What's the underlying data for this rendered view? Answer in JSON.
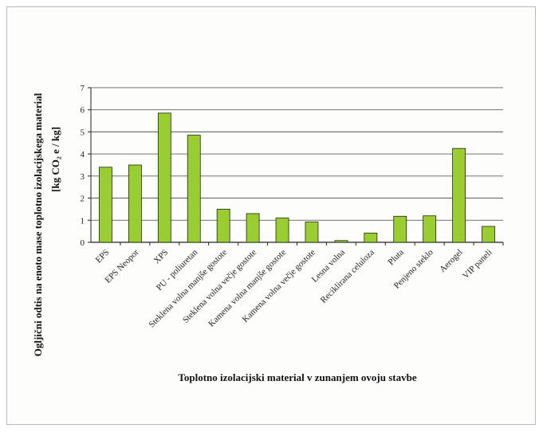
{
  "chart_data": {
    "type": "bar",
    "title": "",
    "ylabel_line1": "Ogljični odtis na enoto mase toplotno izolacijskega material",
    "ylabel_line2": "[kg CO₂ e / kg]",
    "xlabel": "Toplotno izolacijski material v zunanjem ovoju stavbe",
    "categories": [
      "EPS",
      "EPS Neopor",
      "XPS",
      "PU - poliuretan",
      "Steklena volna manjše gostote",
      "Steklena volna večje gostote",
      "Kamena volna manjše gostote",
      "Kamena volna večje gostote",
      "Lesna volna",
      "Reciklirana celuloza",
      "Pluta",
      "Penjeno steklo",
      "Aerogel",
      "VIP paneli"
    ],
    "values": [
      3.4,
      3.5,
      5.85,
      4.85,
      1.5,
      1.3,
      1.1,
      0.92,
      0.08,
      0.42,
      1.18,
      1.2,
      4.25,
      0.72
    ],
    "ylim": [
      0,
      7
    ],
    "yticks": [
      "0",
      "1",
      "2",
      "3",
      "4",
      "5",
      "6",
      "7"
    ],
    "grid": true,
    "legend": "none",
    "bar_color": "#9acd32",
    "bar_stroke": "#1f2a10",
    "grid_color": "#444444"
  }
}
